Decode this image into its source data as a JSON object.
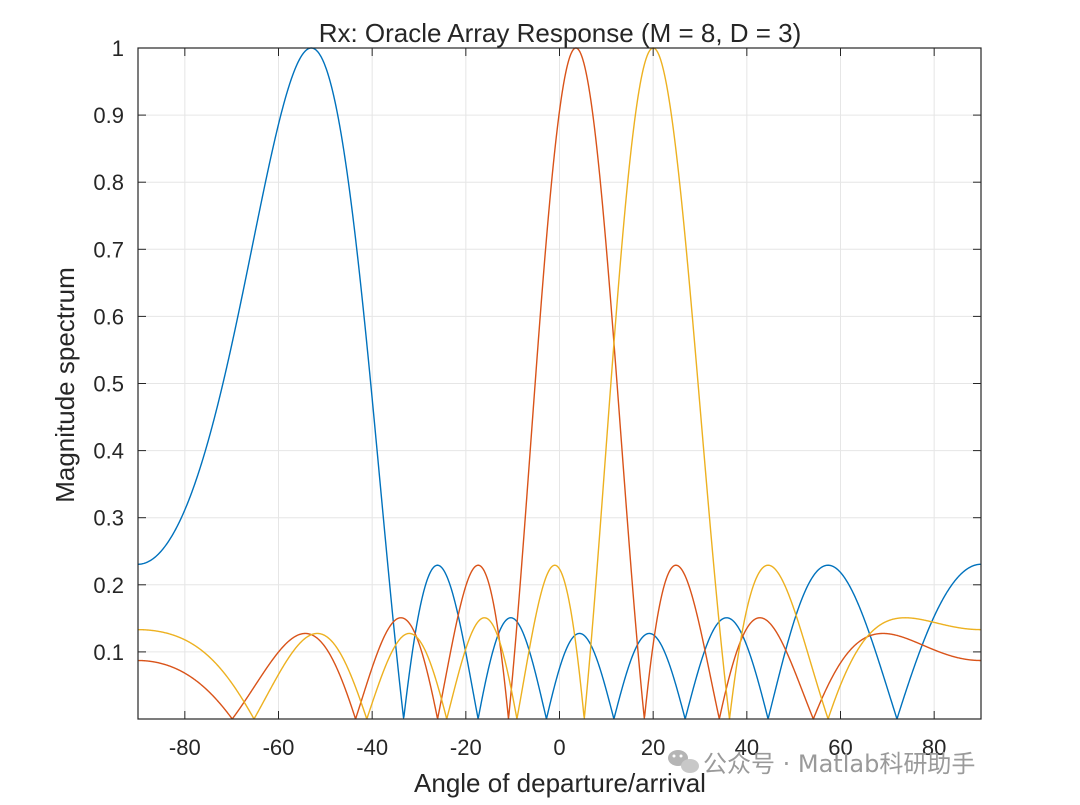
{
  "chart_data": {
    "type": "line",
    "title": "Rx: Oracle Array Response (M = 8, D = 3)",
    "xlabel": "Angle of departure/arrival",
    "ylabel": "Magnitude spectrum",
    "xlim": [
      -90,
      90
    ],
    "ylim": [
      0,
      1
    ],
    "xticks": [
      -80,
      -60,
      -40,
      -20,
      0,
      20,
      40,
      60,
      80
    ],
    "xtick_labels": [
      "-80",
      "-60",
      "-40",
      "-20",
      "0",
      "20",
      "40",
      "60",
      "80"
    ],
    "yticks": [
      0.1,
      0.2,
      0.3,
      0.4,
      0.5,
      0.6,
      0.7,
      0.8,
      0.9,
      1
    ],
    "ytick_labels": [
      "0.1",
      "0.2",
      "0.3",
      "0.4",
      "0.5",
      "0.6",
      "0.7",
      "0.8",
      "0.9",
      "1"
    ],
    "grid": true,
    "series_model": "uniform linear array response, M elements, half-wavelength spacing, beam steered to peak angle",
    "num_elements": 8,
    "series": [
      {
        "peak_deg": -53,
        "color": "#0072BD"
      },
      {
        "peak_deg": 3.5,
        "color": "#D95319"
      },
      {
        "peak_deg": 20,
        "color": "#EDB120"
      }
    ]
  },
  "watermark": {
    "icon": "wechat-icon",
    "text": "公众号 · Matlab科研助手"
  }
}
